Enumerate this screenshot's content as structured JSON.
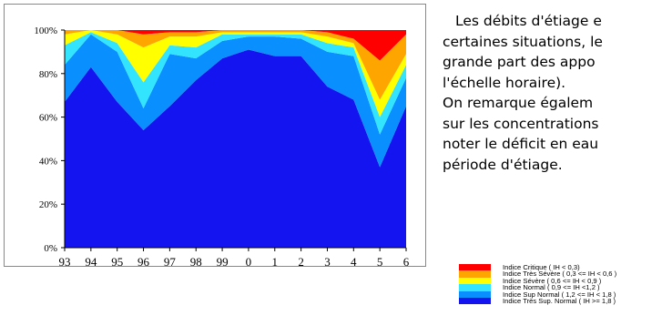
{
  "chart_data": {
    "type": "area",
    "stacked": true,
    "ylim": [
      0,
      100
    ],
    "y_ticks": [
      "0%",
      "20%",
      "40%",
      "60%",
      "80%",
      "100%"
    ],
    "categories": [
      "93",
      "94",
      "95",
      "96",
      "97",
      "98",
      "99",
      "0",
      "1",
      "2",
      "3",
      "4",
      "5",
      "6"
    ],
    "legend_placement": "bottom-right",
    "series": [
      {
        "name": "Indice Très Sup. Normal  ( IH >= 1,8 )",
        "color": "#1414f0",
        "values": [
          67,
          83,
          67,
          54,
          65,
          77,
          87,
          91,
          88,
          88,
          74,
          68,
          37,
          65
        ]
      },
      {
        "name": "Indice Sup Normal  ( 1,2 <= IH < 1,8 )",
        "color": "#0a8fff",
        "values": [
          17,
          15,
          23,
          10,
          24,
          10,
          8,
          6,
          9,
          8,
          16,
          20,
          15,
          13
        ]
      },
      {
        "name": "Indice Normal  ( 0,9 <= IH <1,2 )",
        "color": "#33e4ff",
        "values": [
          9,
          1,
          4,
          12,
          4,
          5,
          3,
          1,
          1,
          2,
          4,
          4,
          8,
          6
        ]
      },
      {
        "name": "Indice Sévère  ( 0,6 <= IH < 0,9 )",
        "color": "#ffff00",
        "values": [
          5,
          1,
          4,
          16,
          4,
          5,
          1,
          1,
          1,
          1,
          3,
          2,
          8,
          5
        ]
      },
      {
        "name": "Indice Très Sévère  ( 0,3 <= IH < 0,6 )",
        "color": "#ffa500",
        "values": [
          2,
          0,
          2,
          6,
          2,
          2,
          1,
          1,
          1,
          1,
          2,
          2,
          18,
          9
        ]
      },
      {
        "name": "Indice Critique  ( IH < 0,3)",
        "color": "#ff0000",
        "values": [
          0,
          0,
          0,
          2,
          1,
          1,
          0,
          0,
          0,
          0,
          1,
          4,
          14,
          2
        ]
      }
    ]
  },
  "text": {
    "lines": [
      "Les débits d'étiage e",
      "certaines situations, le",
      "grande part des appo",
      "l'échelle horaire).",
      "On remarque égalem",
      "sur les concentrations",
      "noter le déficit en eau",
      "période d'étiage."
    ]
  },
  "legend": [
    {
      "label": "Indice Critique  ( IH < 0,3)",
      "color": "#ff0000"
    },
    {
      "label": "Indice Très Sévère  ( 0,3 <= IH < 0,6 )",
      "color": "#ffa500"
    },
    {
      "label": "Indice Sévère  ( 0,6 <= IH < 0,9 )",
      "color": "#ffff00"
    },
    {
      "label": "Indice Normal  ( 0,9 <= IH <1,2 )",
      "color": "#33e4ff"
    },
    {
      "label": "Indice Sup Normal  ( 1,2 <= IH < 1,8 )",
      "color": "#0a8fff"
    },
    {
      "label": "Indice Très Sup. Normal  ( IH >= 1,8 )",
      "color": "#1414f0"
    }
  ]
}
